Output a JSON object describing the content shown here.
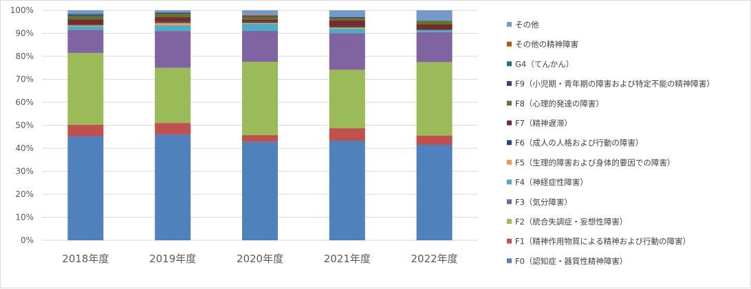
{
  "chart_data": {
    "type": "bar",
    "stacked": true,
    "categories": [
      "2018年度",
      "2019年度",
      "2020年度",
      "2021年度",
      "2022年度"
    ],
    "ylim": [
      0,
      100
    ],
    "yticks": [
      "0%",
      "10%",
      "20%",
      "30%",
      "40%",
      "50%",
      "60%",
      "70%",
      "80%",
      "90%",
      "100%"
    ],
    "grid": true,
    "legend_position": "right",
    "series": [
      {
        "name": "F0（認知症・器質性精神障害）",
        "color": "#4f81bd",
        "values": [
          45,
          46,
          43,
          43.5,
          41.5
        ]
      },
      {
        "name": "F1（精神作用物質による精神および行動の障害）",
        "color": "#c0504d",
        "values": [
          5,
          5,
          3,
          5.5,
          4
        ]
      },
      {
        "name": "F2（統合失調症・妄想性障害）",
        "color": "#9bbb59",
        "values": [
          31,
          24,
          32,
          25.5,
          32
        ]
      },
      {
        "name": "F3（気分障害）",
        "color": "#8064a2",
        "values": [
          10,
          16,
          13.5,
          16,
          13
        ]
      },
      {
        "name": "F4（神経症性障害）",
        "color": "#4bacc6",
        "values": [
          1.5,
          2.5,
          3,
          2,
          1
        ]
      },
      {
        "name": "F5（生理的障害および身体的要因での障害）",
        "color": "#f79646",
        "values": [
          0.5,
          1,
          0.5,
          0.5,
          0
        ]
      },
      {
        "name": "F6（成人の人格および行動の障害）",
        "color": "#1f497d",
        "values": [
          0.5,
          0.5,
          0.5,
          0.5,
          0
        ]
      },
      {
        "name": "F7（精神遅滞）",
        "color": "#772c2a",
        "values": [
          2,
          2,
          1,
          2.5,
          2.5
        ]
      },
      {
        "name": "F8（心理的発達の障害）",
        "color": "#5f7530",
        "values": [
          1.5,
          1.5,
          1,
          1,
          1.5
        ]
      },
      {
        "name": "F9（小児期・青年期の障害および特定不能の精神障害）",
        "color": "#4d3b62",
        "values": [
          0.5,
          0.5,
          0.5,
          0.5,
          0
        ]
      },
      {
        "name": "G4（てんかん）",
        "color": "#276a7c",
        "values": [
          0.5,
          0,
          0,
          0,
          0
        ]
      },
      {
        "name": "その他の精神障害",
        "color": "#b65708",
        "values": [
          0,
          0,
          0.5,
          0,
          0
        ]
      },
      {
        "name": "その他",
        "color": "#729aca",
        "values": [
          1.5,
          1,
          2,
          3,
          4.5
        ]
      }
    ]
  }
}
